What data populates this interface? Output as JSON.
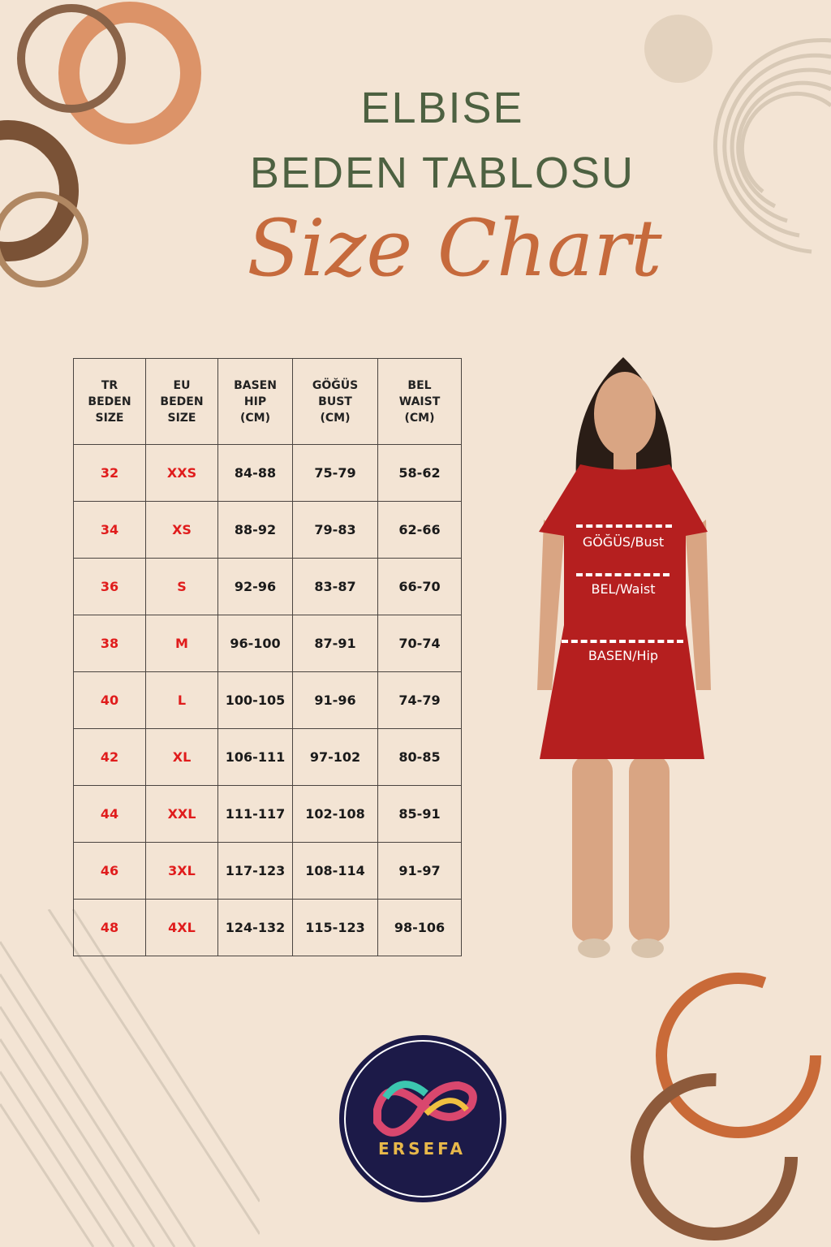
{
  "header": {
    "title_line1": "ELBISE",
    "title_line2": "BEDEN TABLOSU",
    "script_title": "Size Chart"
  },
  "table": {
    "columns": [
      {
        "l1": "TR",
        "l2": "BEDEN",
        "l3": "SIZE"
      },
      {
        "l1": "EU",
        "l2": "BEDEN",
        "l3": "SIZE"
      },
      {
        "l1": "BASEN",
        "l2": "HIP",
        "l3": "(CM)"
      },
      {
        "l1": "GÖĞÜS",
        "l2": "BUST",
        "l3": "(CM)"
      },
      {
        "l1": "BEL",
        "l2": "WAIST",
        "l3": "(CM)"
      }
    ],
    "rows": [
      [
        "32",
        "XXS",
        "84-88",
        "75-79",
        "58-62"
      ],
      [
        "34",
        "XS",
        "88-92",
        "79-83",
        "62-66"
      ],
      [
        "36",
        "S",
        "92-96",
        "83-87",
        "66-70"
      ],
      [
        "38",
        "M",
        "96-100",
        "87-91",
        "70-74"
      ],
      [
        "40",
        "L",
        "100-105",
        "91-96",
        "74-79"
      ],
      [
        "42",
        "XL",
        "106-111",
        "97-102",
        "80-85"
      ],
      [
        "44",
        "XXL",
        "111-117",
        "102-108",
        "85-91"
      ],
      [
        "46",
        "3XL",
        "117-123",
        "108-114",
        "91-97"
      ],
      [
        "48",
        "4XL",
        "124-132",
        "115-123",
        "98-106"
      ]
    ]
  },
  "figure": {
    "bust_label": "GÖĞÜS/Bust",
    "waist_label": "BEL/Waist",
    "hip_label": "BASEN/Hip",
    "dress_color": "#b51f1f"
  },
  "logo": {
    "brand": "ERSEFA",
    "bg_color": "#1c1a48",
    "text_color": "#e8b84a"
  },
  "colors": {
    "background": "#f3e4d4",
    "title": "#4d6141",
    "script": "#c66a3c",
    "size_red": "#e01c1c"
  }
}
